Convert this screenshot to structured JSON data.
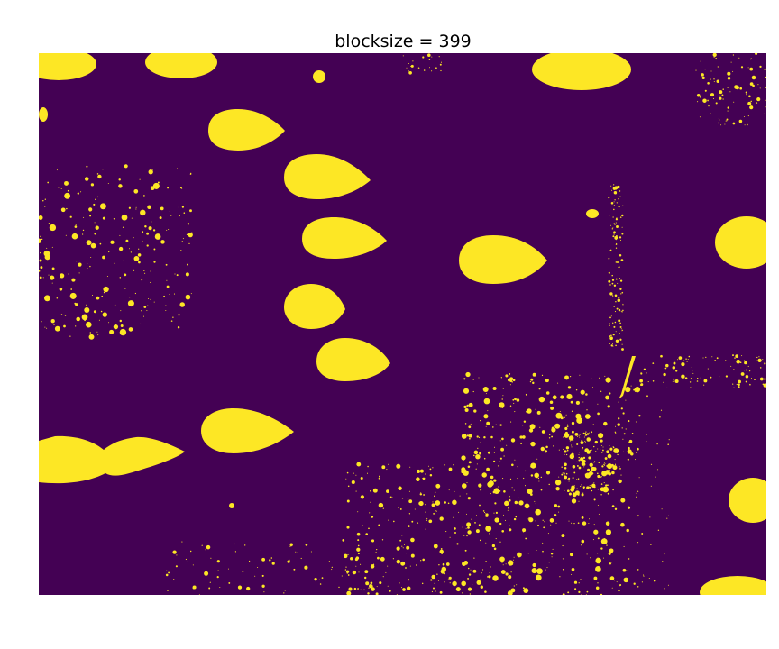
{
  "figure": {
    "title": "blocksize = 399"
  },
  "colors": {
    "background": "#440154",
    "foreground": "#fde725",
    "page": "#ffffff"
  }
}
